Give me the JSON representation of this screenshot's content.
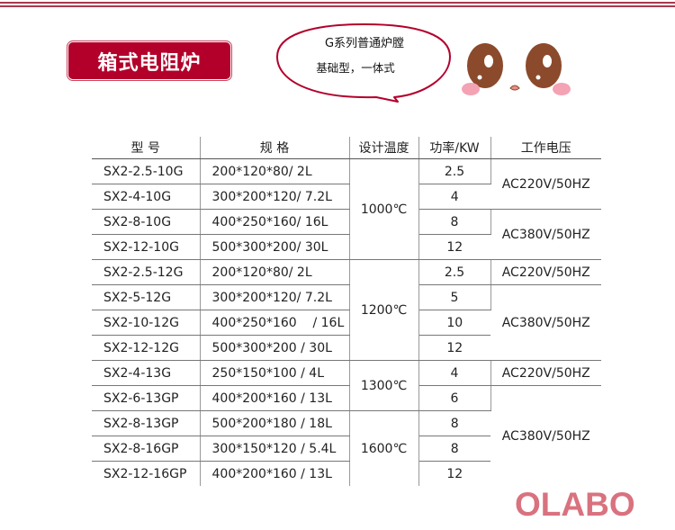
{
  "title": "箱式电阻炉",
  "bubble": {
    "line1": "G系列普通炉膛",
    "line2": "基础型，一体式"
  },
  "brand": "OLABO",
  "colors": {
    "title_bg": "#b3002b",
    "brand": "#d9727f",
    "eye": "#8b4a2b",
    "cheek": "#f3a3b3"
  },
  "table": {
    "headers": [
      "型 号",
      "规 格",
      "设计温度",
      "功率/KW",
      "工作电压"
    ],
    "rows": [
      {
        "model": "SX2-2.5-10G",
        "spec": "200*120*80/ 2L",
        "power": "2.5"
      },
      {
        "model": "SX2-4-10G",
        "spec": "300*200*120/ 7.2L",
        "power": "4"
      },
      {
        "model": "SX2-8-10G",
        "spec": "400*250*160/ 16L",
        "power": "8"
      },
      {
        "model": "SX2-12-10G",
        "spec": "500*300*200/ 30L",
        "power": "12"
      },
      {
        "model": "SX2-2.5-12G",
        "spec": "200*120*80/ 2L",
        "power": "2.5"
      },
      {
        "model": "SX2-5-12G",
        "spec": "300*200*120/ 7.2L",
        "power": "5"
      },
      {
        "model": "SX2-10-12G",
        "spec": "400*250*160    / 16L",
        "power": "10"
      },
      {
        "model": "SX2-12-12G",
        "spec": "500*300*200 / 30L",
        "power": "12"
      },
      {
        "model": "SX2-4-13G",
        "spec": "250*150*100 / 4L",
        "power": "4"
      },
      {
        "model": "SX2-6-13GP",
        "spec": "400*200*160 / 13L",
        "power": "6"
      },
      {
        "model": "SX2-8-13GP",
        "spec": "500*200*180 / 18L",
        "power": "8"
      },
      {
        "model": "SX2-8-16GP",
        "spec": "300*150*120 / 5.4L",
        "power": "8"
      },
      {
        "model": "SX2-12-16GP",
        "spec": "400*200*160 / 13L",
        "power": "12"
      }
    ],
    "temps": [
      "1000℃",
      "1200℃",
      "1300℃",
      "1600℃"
    ],
    "voltages": [
      "AC220V/50HZ",
      "AC380V/50HZ",
      "AC220V/50HZ",
      "AC380V/50HZ",
      "AC220V/50HZ",
      "AC380V/50HZ"
    ]
  }
}
